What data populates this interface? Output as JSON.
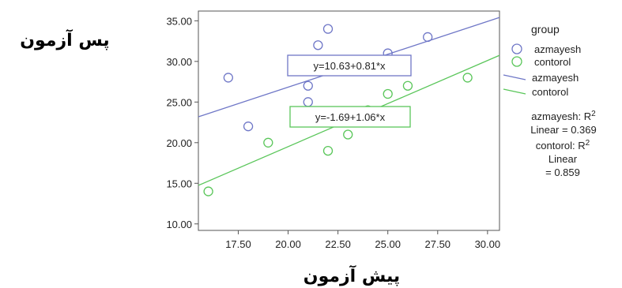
{
  "chart_data": {
    "type": "scatter",
    "xlabel": "پیش آزمون",
    "ylabel": "پس آزمون",
    "xlim": [
      15.5,
      30.6
    ],
    "ylim": [
      9.2,
      36.2
    ],
    "x_ticks": [
      17.5,
      20,
      22.5,
      25,
      27.5,
      30
    ],
    "x_tick_labels": [
      "17.50",
      "20.00",
      "22.50",
      "25.00",
      "27.50",
      "30.00"
    ],
    "y_ticks": [
      10,
      15,
      20,
      25,
      30,
      35
    ],
    "y_tick_labels": [
      "10.00",
      "15.00",
      "20.00",
      "25.00",
      "30.00",
      "35.00"
    ],
    "grid": false,
    "legend": {
      "title": "group",
      "placement": "right",
      "marker_entries": [
        "azmayesh",
        "contorol"
      ],
      "line_entries": [
        "azmayesh",
        "contorol"
      ],
      "r2_notes": [
        {
          "series": "azmayesh",
          "lines": [
            "azmayesh: R",
            "Linear = 0.369"
          ]
        },
        {
          "series": "contorol",
          "lines": [
            "contorol: R",
            "Linear",
            "= 0.859"
          ]
        }
      ],
      "sup": "2"
    },
    "series": [
      {
        "name": "azmayesh",
        "color": "#6f77c7",
        "points": [
          [
            17,
            28
          ],
          [
            18,
            22
          ],
          [
            21,
            25
          ],
          [
            21,
            27
          ],
          [
            21.5,
            32
          ],
          [
            22,
            34
          ],
          [
            25,
            31
          ],
          [
            25.5,
            30
          ],
          [
            27,
            33
          ]
        ],
        "fit": {
          "intercept": 10.63,
          "slope": 0.81
        },
        "equation": "y=10.63+0.81*x"
      },
      {
        "name": "contorol",
        "color": "#5ac65a",
        "points": [
          [
            16,
            14
          ],
          [
            19,
            20
          ],
          [
            22,
            19
          ],
          [
            23,
            21
          ],
          [
            24,
            24
          ],
          [
            25,
            26
          ],
          [
            26,
            27
          ],
          [
            29,
            28
          ]
        ],
        "fit": {
          "intercept": -1.69,
          "slope": 1.06
        },
        "equation": "y=-1.69+1.06*x"
      }
    ]
  }
}
